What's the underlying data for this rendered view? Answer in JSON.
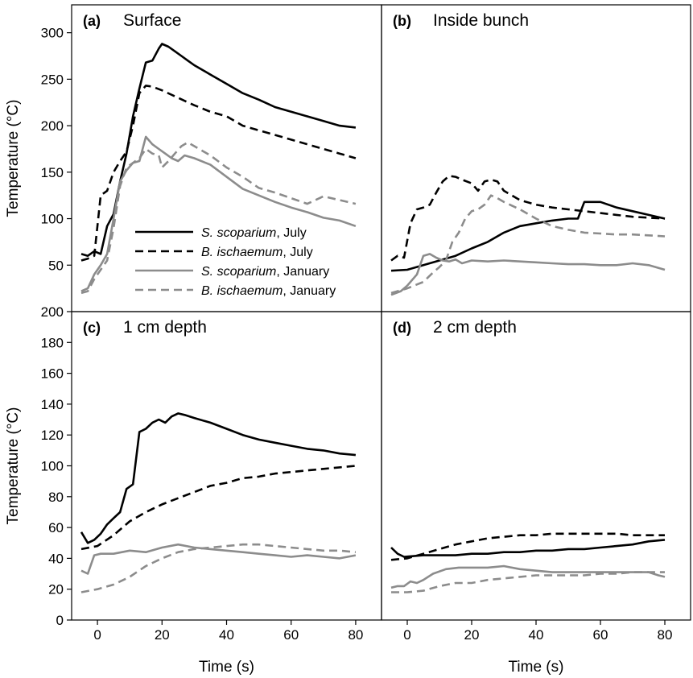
{
  "colors": {
    "black": "#000000",
    "gray": "#8c8c8c"
  },
  "legend": [
    {
      "name": "S. scoparium",
      "suffix": ", July",
      "color": "#000000",
      "dash": "solid"
    },
    {
      "name": "B. ischaemum",
      "suffix": ", July",
      "color": "#000000",
      "dash": "dashed"
    },
    {
      "name": "S. scoparium",
      "suffix": ", January",
      "color": "#8c8c8c",
      "dash": "solid"
    },
    {
      "name": "B. ischaemum",
      "suffix": ", January",
      "color": "#8c8c8c",
      "dash": "dashed"
    }
  ],
  "chart_data": [
    {
      "type": "line",
      "panel_letter": "(a)",
      "title": "Surface",
      "xlabel": "",
      "ylabel": "Temperature (°C)",
      "xlim": [
        -8,
        88
      ],
      "ylim": [
        0,
        330
      ],
      "yticks": [
        50,
        100,
        150,
        200,
        250,
        300
      ],
      "xticks": [],
      "series": [
        {
          "name": "S. scoparium, July",
          "color": "#000000",
          "dash": "solid",
          "x": [
            -5,
            -3,
            -1,
            1,
            3,
            5,
            7,
            9,
            11,
            13,
            15,
            17,
            19,
            20,
            22,
            24,
            26,
            28,
            30,
            35,
            40,
            45,
            50,
            55,
            60,
            65,
            70,
            75,
            80
          ],
          "y": [
            62,
            60,
            65,
            62,
            92,
            105,
            140,
            170,
            210,
            240,
            268,
            270,
            283,
            288,
            285,
            280,
            275,
            270,
            265,
            255,
            245,
            235,
            228,
            220,
            215,
            210,
            205,
            200,
            198
          ]
        },
        {
          "name": "B. ischaemum, July",
          "color": "#000000",
          "dash": "dashed",
          "x": [
            -5,
            -3,
            -1,
            1,
            3,
            5,
            7,
            9,
            11,
            13,
            15,
            17,
            20,
            25,
            30,
            35,
            40,
            45,
            50,
            55,
            60,
            65,
            70,
            75,
            80
          ],
          "y": [
            55,
            57,
            60,
            125,
            130,
            150,
            162,
            172,
            200,
            235,
            243,
            242,
            238,
            230,
            222,
            215,
            210,
            200,
            195,
            190,
            185,
            180,
            175,
            170,
            165
          ]
        },
        {
          "name": "S. scoparium, January",
          "color": "#8c8c8c",
          "dash": "solid",
          "x": [
            -5,
            -3,
            -1,
            1,
            3,
            5,
            7,
            9,
            11,
            13,
            15,
            17,
            19,
            21,
            23,
            25,
            27,
            30,
            35,
            40,
            45,
            50,
            55,
            60,
            65,
            70,
            75,
            80
          ],
          "y": [
            22,
            25,
            40,
            50,
            62,
            100,
            140,
            152,
            160,
            162,
            188,
            180,
            175,
            170,
            165,
            162,
            168,
            165,
            158,
            145,
            132,
            125,
            118,
            112,
            107,
            101,
            98,
            92
          ]
        },
        {
          "name": "B. ischaemum, January",
          "color": "#8c8c8c",
          "dash": "dashed",
          "x": [
            -5,
            -3,
            -1,
            1,
            3,
            5,
            7,
            9,
            11,
            13,
            15,
            17,
            19,
            20,
            22,
            24,
            26,
            28,
            30,
            35,
            40,
            45,
            50,
            55,
            60,
            65,
            70,
            75,
            80
          ],
          "y": [
            20,
            22,
            35,
            45,
            55,
            90,
            135,
            155,
            160,
            165,
            175,
            170,
            168,
            155,
            162,
            170,
            178,
            182,
            178,
            168,
            155,
            145,
            133,
            128,
            122,
            116,
            124,
            120,
            116
          ]
        }
      ]
    },
    {
      "type": "line",
      "panel_letter": "(b)",
      "title": "Inside bunch",
      "xlabel": "",
      "ylabel": "",
      "xlim": [
        -8,
        88
      ],
      "ylim": [
        0,
        330
      ],
      "yticks": [],
      "xticks": [],
      "series": [
        {
          "name": "S. scoparium, July",
          "color": "#000000",
          "dash": "solid",
          "x": [
            -5,
            0,
            5,
            10,
            15,
            20,
            25,
            30,
            35,
            40,
            45,
            50,
            53,
            55,
            60,
            65,
            70,
            75,
            80
          ],
          "y": [
            44,
            45,
            50,
            55,
            60,
            68,
            75,
            85,
            92,
            95,
            98,
            100,
            100,
            118,
            118,
            112,
            108,
            104,
            100
          ]
        },
        {
          "name": "B. ischaemum, July",
          "color": "#000000",
          "dash": "dashed",
          "x": [
            -5,
            -3,
            -1,
            1,
            3,
            5,
            7,
            9,
            11,
            13,
            15,
            17,
            20,
            22,
            24,
            26,
            28,
            30,
            35,
            40,
            45,
            50,
            55,
            60,
            65,
            70,
            75,
            80
          ],
          "y": [
            55,
            60,
            58,
            95,
            110,
            112,
            115,
            128,
            140,
            146,
            145,
            142,
            138,
            130,
            140,
            142,
            140,
            130,
            120,
            115,
            112,
            110,
            108,
            106,
            104,
            102,
            101,
            100
          ]
        },
        {
          "name": "S. scoparium, January",
          "color": "#8c8c8c",
          "dash": "solid",
          "x": [
            -5,
            -2,
            0,
            3,
            5,
            7,
            9,
            11,
            13,
            15,
            17,
            20,
            25,
            30,
            35,
            40,
            45,
            50,
            55,
            60,
            65,
            70,
            75,
            80
          ],
          "y": [
            18,
            22,
            28,
            40,
            60,
            62,
            58,
            55,
            54,
            56,
            52,
            55,
            54,
            55,
            54,
            53,
            52,
            51,
            51,
            50,
            50,
            52,
            50,
            45
          ]
        },
        {
          "name": "B. ischaemum, January",
          "color": "#8c8c8c",
          "dash": "dashed",
          "x": [
            -5,
            0,
            5,
            8,
            10,
            12,
            14,
            16,
            18,
            20,
            22,
            24,
            26,
            28,
            30,
            35,
            40,
            45,
            50,
            55,
            60,
            65,
            70,
            75,
            80
          ],
          "y": [
            20,
            25,
            32,
            42,
            48,
            55,
            75,
            85,
            100,
            108,
            110,
            115,
            125,
            122,
            118,
            110,
            100,
            92,
            88,
            85,
            84,
            83,
            83,
            82,
            81
          ]
        }
      ]
    },
    {
      "type": "line",
      "panel_letter": "(c)",
      "title": "1 cm depth",
      "xlabel": "Time (s)",
      "ylabel": "Temperature (°C)",
      "xlim": [
        -8,
        88
      ],
      "ylim": [
        0,
        200
      ],
      "yticks": [
        0,
        20,
        40,
        60,
        80,
        100,
        120,
        140,
        160,
        180,
        200
      ],
      "xticks": [
        0,
        20,
        40,
        60,
        80
      ],
      "series": [
        {
          "name": "S. scoparium, July",
          "color": "#000000",
          "dash": "solid",
          "x": [
            -5,
            -3,
            -1,
            1,
            3,
            5,
            7,
            9,
            11,
            13,
            15,
            17,
            19,
            21,
            23,
            25,
            27,
            30,
            35,
            40,
            45,
            50,
            55,
            60,
            65,
            70,
            75,
            80
          ],
          "y": [
            57,
            50,
            52,
            56,
            62,
            66,
            70,
            85,
            88,
            122,
            124,
            128,
            130,
            128,
            132,
            134,
            133,
            131,
            128,
            124,
            120,
            117,
            115,
            113,
            111,
            110,
            108,
            107
          ]
        },
        {
          "name": "B. ischaemum, July",
          "color": "#000000",
          "dash": "dashed",
          "x": [
            -5,
            0,
            5,
            10,
            15,
            20,
            25,
            30,
            35,
            40,
            45,
            50,
            55,
            60,
            65,
            70,
            75,
            80
          ],
          "y": [
            46,
            48,
            55,
            64,
            70,
            75,
            79,
            83,
            87,
            89,
            92,
            93,
            95,
            96,
            97,
            98,
            99,
            100
          ]
        },
        {
          "name": "S. scoparium, January",
          "color": "#8c8c8c",
          "dash": "solid",
          "x": [
            -5,
            -3,
            -1,
            1,
            5,
            10,
            15,
            20,
            25,
            30,
            35,
            40,
            45,
            50,
            55,
            60,
            65,
            70,
            75,
            80
          ],
          "y": [
            32,
            30,
            42,
            43,
            43,
            45,
            44,
            47,
            49,
            47,
            46,
            45,
            44,
            43,
            42,
            41,
            42,
            41,
            40,
            42
          ]
        },
        {
          "name": "B. ischaemum, January",
          "color": "#8c8c8c",
          "dash": "dashed",
          "x": [
            -5,
            0,
            5,
            10,
            15,
            20,
            25,
            30,
            35,
            40,
            45,
            50,
            55,
            60,
            65,
            70,
            75,
            80
          ],
          "y": [
            18,
            20,
            23,
            28,
            35,
            40,
            44,
            46,
            47,
            48,
            49,
            49,
            48,
            47,
            46,
            45,
            45,
            44
          ]
        }
      ]
    },
    {
      "type": "line",
      "panel_letter": "(d)",
      "title": "2 cm depth",
      "xlabel": "Time (s)",
      "ylabel": "",
      "xlim": [
        -8,
        88
      ],
      "ylim": [
        0,
        200
      ],
      "yticks": [],
      "xticks": [
        0,
        20,
        40,
        60,
        80
      ],
      "series": [
        {
          "name": "S. scoparium, July",
          "color": "#000000",
          "dash": "solid",
          "x": [
            -5,
            -3,
            -1,
            5,
            10,
            15,
            20,
            25,
            30,
            35,
            40,
            45,
            50,
            55,
            60,
            65,
            70,
            75,
            80
          ],
          "y": [
            47,
            43,
            41,
            42,
            42,
            42,
            43,
            43,
            44,
            44,
            45,
            45,
            46,
            46,
            47,
            48,
            49,
            51,
            52
          ]
        },
        {
          "name": "B. ischaemum, July",
          "color": "#000000",
          "dash": "dashed",
          "x": [
            -5,
            0,
            5,
            10,
            15,
            20,
            25,
            30,
            35,
            40,
            45,
            50,
            55,
            60,
            65,
            70,
            75,
            80
          ],
          "y": [
            39,
            40,
            43,
            46,
            49,
            51,
            53,
            54,
            55,
            55,
            56,
            56,
            56,
            56,
            56,
            55,
            55,
            55
          ]
        },
        {
          "name": "S. scoparium, January",
          "color": "#8c8c8c",
          "dash": "solid",
          "x": [
            -5,
            -3,
            -1,
            1,
            3,
            5,
            8,
            12,
            16,
            20,
            25,
            30,
            35,
            40,
            45,
            50,
            55,
            60,
            65,
            70,
            75,
            78,
            80
          ],
          "y": [
            21,
            22,
            22,
            25,
            24,
            26,
            30,
            33,
            34,
            34,
            34,
            35,
            33,
            32,
            31,
            31,
            31,
            31,
            31,
            31,
            31,
            29,
            28
          ]
        },
        {
          "name": "B. ischaemum, January",
          "color": "#8c8c8c",
          "dash": "dashed",
          "x": [
            -5,
            0,
            5,
            10,
            15,
            20,
            25,
            30,
            35,
            40,
            45,
            50,
            55,
            60,
            65,
            70,
            75,
            80
          ],
          "y": [
            18,
            18,
            19,
            22,
            24,
            24,
            26,
            27,
            28,
            29,
            29,
            29,
            29,
            30,
            30,
            31,
            31,
            31
          ]
        }
      ]
    }
  ]
}
